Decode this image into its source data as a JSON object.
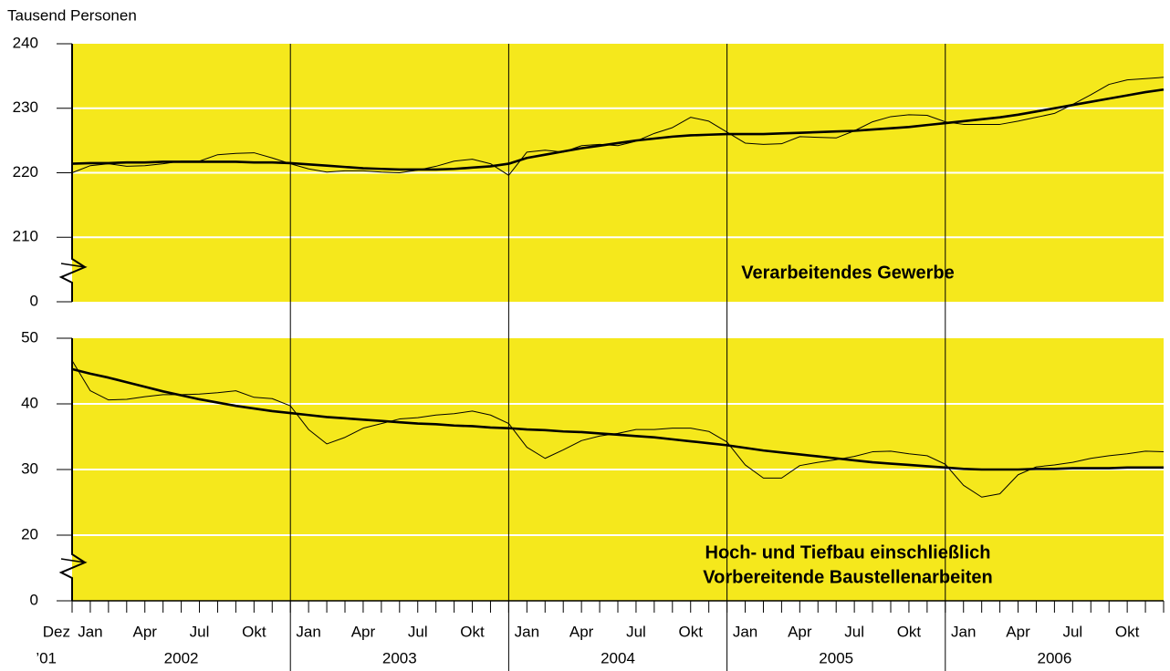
{
  "chart_data": {
    "type": "line",
    "y_label": "Tausend Personen",
    "categories": [
      "Dez",
      "Jan",
      null,
      null,
      "Apr",
      null,
      null,
      "Jul",
      null,
      null,
      "Okt",
      null,
      null,
      "Jan",
      null,
      null,
      "Apr",
      null,
      null,
      "Jul",
      null,
      null,
      "Okt",
      null,
      null,
      "Jan",
      null,
      null,
      "Apr",
      null,
      null,
      "Jul",
      null,
      null,
      "Okt",
      null,
      null,
      "Jan",
      null,
      null,
      "Apr",
      null,
      null,
      "Jul",
      null,
      null,
      "Okt",
      null,
      null,
      "Jan",
      null,
      null,
      "Apr",
      null,
      null,
      "Jul",
      null,
      null,
      "Okt",
      null,
      null
    ],
    "year_labels": [
      "’01",
      "2002",
      "2003",
      "2004",
      "2005",
      "2006"
    ],
    "background": "#f5e81c",
    "grid": true,
    "grid_color": "#ffffff",
    "panels": [
      {
        "ylim": [
          0,
          240
        ],
        "axis_break": [
          0,
          200
        ],
        "yticks": [
          0,
          210,
          220,
          230,
          240
        ],
        "annotation": [
          "Verarbeitendes Gewerbe"
        ],
        "series": [
          {
            "color": "#000000",
            "line_width": 1,
            "values": [
              220.0,
              221.1,
              221.4,
              221.0,
              221.1,
              221.4,
              221.8,
              221.8,
              222.8,
              223.0,
              223.1,
              222.3,
              221.4,
              220.6,
              220.1,
              220.3,
              220.3,
              220.1,
              220.0,
              220.4,
              221.0,
              221.8,
              222.1,
              221.4,
              219.6,
              223.2,
              223.5,
              223.2,
              224.2,
              224.4,
              224.2,
              224.9,
              226.1,
              227.0,
              228.6,
              228.0,
              226.3,
              224.6,
              224.4,
              224.5,
              225.6,
              225.5,
              225.4,
              226.5,
              227.9,
              228.7,
              229.0,
              228.9,
              227.9,
              227.5,
              227.5,
              227.5,
              228.0,
              228.6,
              229.2,
              230.6,
              232.1,
              233.7,
              234.4,
              234.6,
              234.8
            ]
          },
          {
            "color": "#000000",
            "line_width": 2.6,
            "values": [
              221.4,
              221.5,
              221.5,
              221.6,
              221.6,
              221.7,
              221.7,
              221.7,
              221.7,
              221.7,
              221.6,
              221.6,
              221.5,
              221.3,
              221.1,
              220.9,
              220.7,
              220.6,
              220.5,
              220.5,
              220.5,
              220.6,
              220.8,
              221.0,
              221.4,
              222.3,
              222.8,
              223.3,
              223.8,
              224.2,
              224.6,
              225.0,
              225.3,
              225.6,
              225.8,
              225.9,
              226.0,
              226.0,
              226.0,
              226.1,
              226.2,
              226.3,
              226.4,
              226.5,
              226.7,
              226.9,
              227.1,
              227.4,
              227.7,
              228.0,
              228.3,
              228.6,
              229.0,
              229.5,
              230.0,
              230.5,
              231.0,
              231.5,
              232.0,
              232.5,
              232.9
            ]
          }
        ]
      },
      {
        "ylim": [
          0,
          50
        ],
        "axis_break": [
          0,
          10
        ],
        "yticks": [
          0,
          20,
          30,
          40,
          50
        ],
        "annotation": [
          "Hoch- und Tiefbau einschließlich",
          "Vorbereitende Baustellenarbeiten"
        ],
        "series": [
          {
            "color": "#000000",
            "line_width": 1,
            "values": [
              46.6,
              42.0,
              40.6,
              40.7,
              41.1,
              41.4,
              41.4,
              41.5,
              41.7,
              42.0,
              41.0,
              40.8,
              39.7,
              36.1,
              33.9,
              34.9,
              36.3,
              37.0,
              37.7,
              37.9,
              38.3,
              38.5,
              38.9,
              38.3,
              37.0,
              33.4,
              31.7,
              33.0,
              34.4,
              35.1,
              35.5,
              36.1,
              36.1,
              36.3,
              36.3,
              35.8,
              34.2,
              30.7,
              28.7,
              28.7,
              30.6,
              31.1,
              31.5,
              32.0,
              32.7,
              32.8,
              32.4,
              32.1,
              30.8,
              27.6,
              25.8,
              26.3,
              29.2,
              30.4,
              30.7,
              31.1,
              31.7,
              32.1,
              32.4,
              32.8,
              32.7
            ]
          },
          {
            "color": "#000000",
            "line_width": 2.6,
            "values": [
              45.3,
              44.6,
              44.0,
              43.3,
              42.6,
              41.9,
              41.3,
              40.7,
              40.2,
              39.7,
              39.3,
              38.9,
              38.6,
              38.3,
              38.0,
              37.8,
              37.6,
              37.4,
              37.2,
              37.0,
              36.9,
              36.7,
              36.6,
              36.4,
              36.3,
              36.1,
              36.0,
              35.8,
              35.7,
              35.5,
              35.3,
              35.1,
              34.9,
              34.6,
              34.3,
              34.0,
              33.7,
              33.3,
              32.9,
              32.6,
              32.3,
              32.0,
              31.7,
              31.4,
              31.1,
              30.9,
              30.7,
              30.5,
              30.3,
              30.1,
              30.0,
              30.0,
              30.0,
              30.1,
              30.1,
              30.2,
              30.2,
              30.2,
              30.3,
              30.3,
              30.3
            ]
          }
        ]
      }
    ]
  }
}
